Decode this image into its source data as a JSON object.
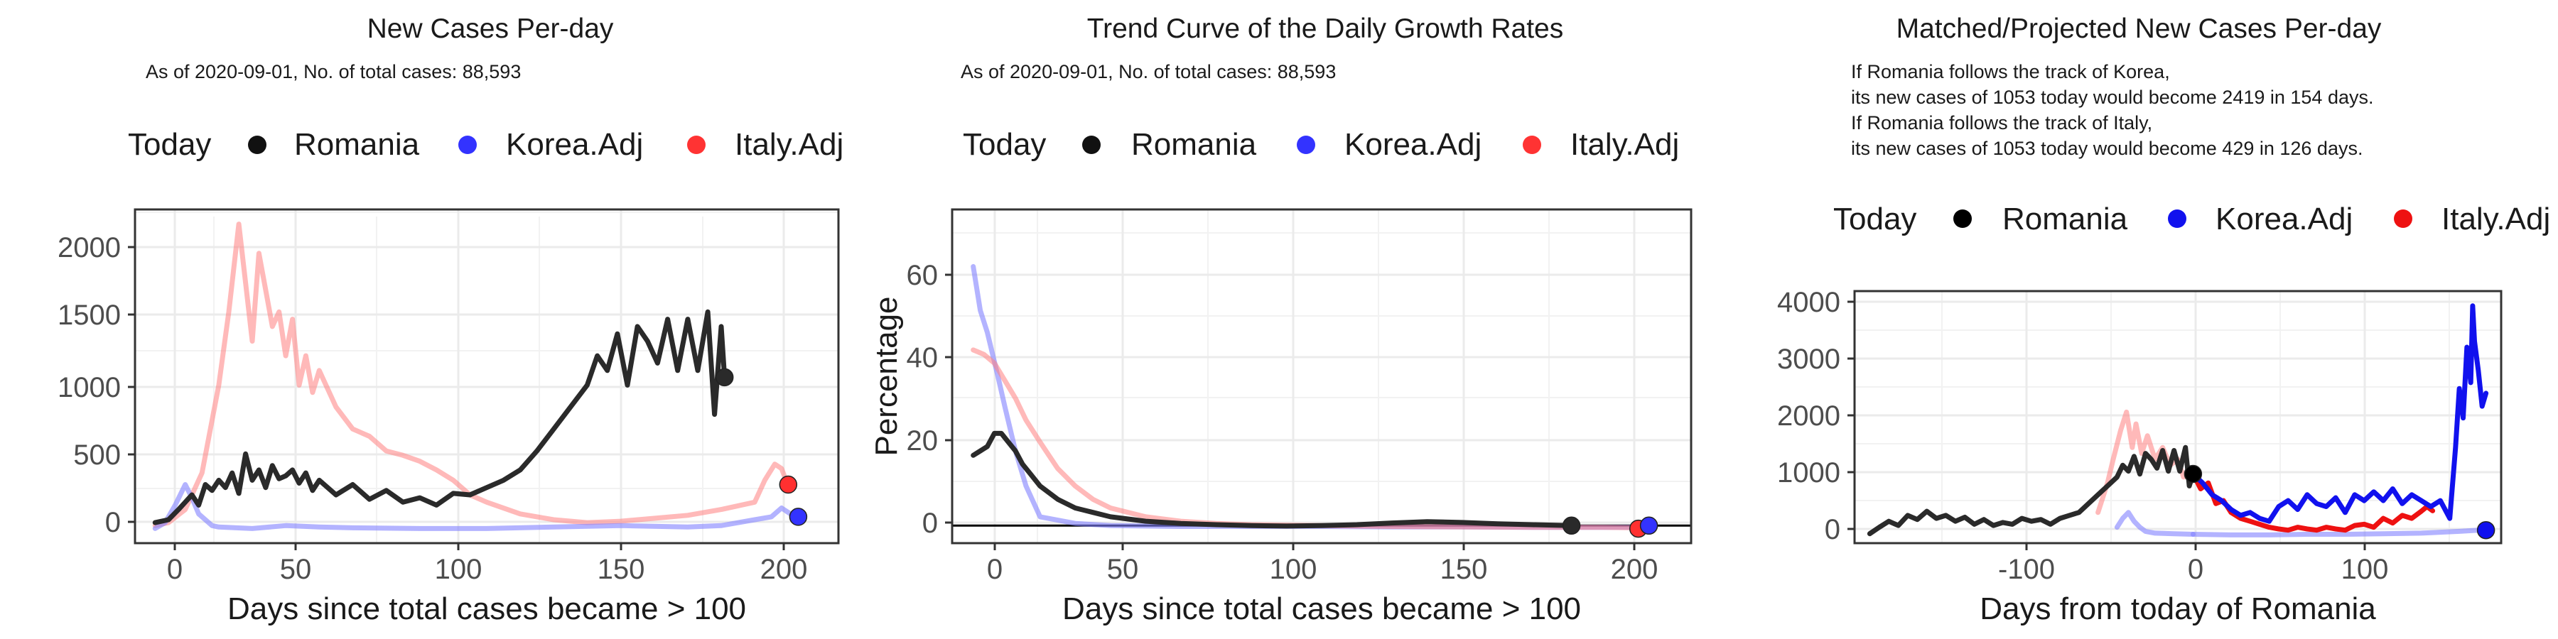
{
  "chart_data": [
    {
      "type": "line",
      "title": "New Cases Per-day",
      "subtitle": "As of 2020-09-01, No. of total cases: 88,593",
      "xlabel": "Days since total cases became > 100",
      "ylabel": "",
      "xlim": [
        -5,
        205
      ],
      "ylim": [
        -80,
        2200
      ],
      "xticks": [
        0,
        50,
        100,
        150,
        200
      ],
      "yticks": [
        0,
        500,
        1000,
        1500,
        2000
      ],
      "xtick_labels": [
        "0",
        "50",
        "100",
        "150",
        "200"
      ],
      "ytick_labels": [
        "0",
        "500",
        "1000",
        "1500",
        "2000"
      ],
      "legend": {
        "title": "Today",
        "entries": [
          "Romania",
          "Korea.Adj",
          "Italy.Adj"
        ]
      },
      "series": [
        {
          "name": "Italy.Adj",
          "color": "#ff8080",
          "opacity": 0.55,
          "x": [
            1,
            5,
            10,
            15,
            20,
            23,
            26,
            28,
            30,
            32,
            34,
            36,
            38,
            40,
            42,
            44,
            46,
            48,
            50,
            55,
            60,
            65,
            70,
            75,
            80,
            85,
            90,
            95,
            100,
            110,
            120,
            130,
            140,
            150,
            160,
            170,
            180,
            183,
            186,
            188,
            190
          ],
          "y": [
            40,
            60,
            150,
            400,
            1000,
            1500,
            2100,
            1700,
            1300,
            1900,
            1650,
            1400,
            1500,
            1200,
            1450,
            1000,
            1200,
            950,
            1100,
            850,
            700,
            650,
            550,
            520,
            480,
            420,
            350,
            250,
            200,
            120,
            80,
            60,
            70,
            90,
            110,
            150,
            200,
            350,
            460,
            430,
            310
          ]
        },
        {
          "name": "Korea.Adj",
          "color": "#8080ff",
          "opacity": 0.6,
          "x": [
            1,
            4,
            7,
            10,
            12,
            14,
            16,
            18,
            20,
            30,
            40,
            50,
            60,
            80,
            100,
            120,
            140,
            160,
            170,
            180,
            185,
            188,
            190,
            192
          ],
          "y": [
            20,
            60,
            180,
            320,
            230,
            120,
            80,
            40,
            30,
            20,
            40,
            30,
            25,
            20,
            20,
            30,
            40,
            30,
            40,
            80,
            100,
            160,
            130,
            100
          ]
        },
        {
          "name": "Romania",
          "color": "#2a2a2a",
          "opacity": 1,
          "x": [
            1,
            5,
            8,
            10,
            12,
            14,
            16,
            18,
            20,
            22,
            24,
            26,
            28,
            30,
            32,
            34,
            36,
            38,
            40,
            42,
            44,
            46,
            48,
            50,
            55,
            60,
            65,
            70,
            75,
            80,
            85,
            90,
            95,
            100,
            105,
            110,
            115,
            120,
            125,
            130,
            133,
            136,
            139,
            142,
            145,
            148,
            151,
            154,
            157,
            160,
            163,
            166,
            168,
            170,
            171
          ],
          "y": [
            60,
            80,
            150,
            200,
            250,
            180,
            320,
            280,
            350,
            300,
            400,
            260,
            530,
            350,
            420,
            300,
            450,
            360,
            380,
            420,
            330,
            400,
            280,
            350,
            250,
            320,
            220,
            280,
            200,
            230,
            180,
            260,
            250,
            300,
            350,
            420,
            550,
            700,
            850,
            1000,
            1200,
            1100,
            1350,
            1000,
            1400,
            1300,
            1150,
            1450,
            1100,
            1450,
            1100,
            1500,
            800,
            1400,
            1053
          ]
        }
      ],
      "points": [
        {
          "name": "Romania",
          "x": 171,
          "y": 1053,
          "color": "#2a2a2a"
        },
        {
          "name": "Italy.Adj",
          "x": 190,
          "y": 320,
          "color": "#ff3030"
        },
        {
          "name": "Korea.Adj",
          "x": 193,
          "y": 100,
          "color": "#3333ff"
        }
      ]
    },
    {
      "type": "line",
      "title": "Trend Curve of the Daily Growth Rates",
      "subtitle": "As of 2020-09-01, No. of total cases: 88,593",
      "xlabel": "Days since total cases became > 100",
      "ylabel": "Percentage",
      "xlim": [
        -5,
        205
      ],
      "ylim": [
        -3,
        73
      ],
      "xticks": [
        0,
        50,
        100,
        150,
        200
      ],
      "yticks": [
        0,
        20,
        40,
        60
      ],
      "xtick_labels": [
        "0",
        "50",
        "100",
        "150",
        "200"
      ],
      "ytick_labels": [
        "0",
        "20",
        "40",
        "60"
      ],
      "hline": 1,
      "legend": {
        "title": "Today",
        "entries": [
          "Romania",
          "Korea.Adj",
          "Italy.Adj"
        ]
      },
      "series": [
        {
          "name": "Korea.Adj",
          "color": "#8080ff",
          "opacity": 0.6,
          "x": [
            1,
            3,
            5,
            8,
            10,
            13,
            16,
            20,
            30,
            40,
            60,
            80,
            100,
            120,
            140,
            160,
            180,
            190,
            193
          ],
          "y": [
            60,
            50,
            45,
            35,
            28,
            18,
            10,
            3,
            1.5,
            1,
            0.8,
            0.8,
            0.8,
            0.7,
            0.7,
            0.6,
            0.6,
            0.6,
            0.5
          ]
        },
        {
          "name": "Italy.Adj",
          "color": "#ff8080",
          "opacity": 0.55,
          "x": [
            1,
            4,
            7,
            10,
            13,
            16,
            20,
            25,
            30,
            35,
            40,
            50,
            60,
            70,
            80,
            100,
            120,
            140,
            160,
            180,
            190
          ],
          "y": [
            41,
            40,
            38,
            34,
            30,
            25,
            20,
            14,
            10,
            7,
            5,
            3,
            2,
            1.5,
            1.2,
            1,
            0.8,
            0.7,
            0.6,
            0.6,
            0.5
          ]
        },
        {
          "name": "Romania",
          "color": "#2a2a2a",
          "opacity": 1,
          "x": [
            1,
            3,
            5,
            7,
            9,
            11,
            13,
            15,
            17,
            20,
            25,
            30,
            35,
            40,
            50,
            60,
            70,
            80,
            90,
            100,
            110,
            120,
            130,
            140,
            150,
            160,
            171
          ],
          "y": [
            17,
            18,
            19,
            22,
            22,
            20,
            18,
            15,
            13,
            10,
            7,
            5,
            4,
            3,
            2,
            1.5,
            1.2,
            1,
            0.9,
            1,
            1.2,
            1.6,
            1.9,
            1.7,
            1.4,
            1.2,
            1
          ]
        }
      ],
      "points": [
        {
          "name": "Romania",
          "x": 171,
          "y": 1,
          "color": "#2a2a2a"
        },
        {
          "name": "Italy.Adj",
          "x": 190,
          "y": 0.3,
          "color": "#ff3030"
        },
        {
          "name": "Korea.Adj",
          "x": 193,
          "y": 1,
          "color": "#3333ff"
        }
      ]
    },
    {
      "type": "line",
      "title": "Matched/Projected New Cases Per-day",
      "annotation": [
        "If Romania follows the track of Korea,",
        "its new cases of 1053 today would become 2419 in 154 days.",
        "If Romania follows the track of Italy,",
        "its new cases of 1053 today would become 429 in 126 days."
      ],
      "xlabel": "Days from today of Romania",
      "ylabel": "",
      "xlim": [
        -178,
        162
      ],
      "ylim": [
        -120,
        4150
      ],
      "xticks": [
        -100,
        0,
        100
      ],
      "yticks": [
        0,
        1000,
        2000,
        3000,
        4000
      ],
      "xtick_labels": [
        "-100",
        "0",
        "100"
      ],
      "ytick_labels": [
        "0",
        "1000",
        "2000",
        "3000",
        "4000"
      ],
      "legend": {
        "title": "Today",
        "entries": [
          "Romania",
          "Korea.Adj",
          "Italy.Adj"
        ]
      },
      "series": [
        {
          "name": "Italy.Adj (matched)",
          "color": "#ff8080",
          "opacity": 0.55,
          "x": [
            -50,
            -45,
            -42,
            -38,
            -35,
            -32,
            -30,
            -27,
            -24,
            -20,
            -16,
            -12,
            -8,
            -5,
            -2,
            0
          ],
          "y": [
            400,
            900,
            1300,
            1800,
            2100,
            1500,
            1900,
            1400,
            1700,
            1300,
            1500,
            1200,
            1300,
            1000,
            1100,
            1000
          ]
        },
        {
          "name": "Korea.Adj (matched)",
          "color": "#8080ff",
          "opacity": 0.6,
          "x": [
            -40,
            -37,
            -34,
            -31,
            -28,
            -25,
            -20,
            -10,
            0
          ],
          "y": [
            150,
            300,
            400,
            250,
            150,
            80,
            50,
            40,
            30
          ]
        },
        {
          "name": "Korea.Adj (past)",
          "color": "#8080ff",
          "opacity": 0.6,
          "x": [
            0,
            20,
            40,
            60,
            80,
            100,
            120,
            140,
            150,
            154
          ],
          "y": [
            30,
            20,
            20,
            30,
            30,
            40,
            50,
            80,
            100,
            110
          ]
        },
        {
          "name": "Romania",
          "color": "#2a2a2a",
          "opacity": 1,
          "x": [
            -170,
            -165,
            -160,
            -155,
            -150,
            -145,
            -140,
            -135,
            -130,
            -125,
            -120,
            -115,
            -110,
            -105,
            -100,
            -95,
            -90,
            -85,
            -80,
            -75,
            -70,
            -65,
            -60,
            -55,
            -50,
            -45,
            -40,
            -37,
            -34,
            -31,
            -28,
            -25,
            -22,
            -19,
            -16,
            -13,
            -10,
            -7,
            -4,
            -2,
            0
          ],
          "y": [
            40,
            150,
            250,
            180,
            350,
            280,
            420,
            300,
            350,
            250,
            320,
            200,
            280,
            180,
            230,
            200,
            300,
            250,
            280,
            200,
            300,
            350,
            400,
            550,
            700,
            850,
            1000,
            1200,
            1100,
            1350,
            1050,
            1400,
            1300,
            1150,
            1450,
            1100,
            1450,
            1100,
            1500,
            850,
            1053
          ]
        },
        {
          "name": "Italy.Adj (projected)",
          "color": "#ee1111",
          "opacity": 1,
          "x": [
            0,
            4,
            8,
            12,
            16,
            20,
            25,
            30,
            35,
            40,
            45,
            50,
            55,
            60,
            65,
            70,
            75,
            80,
            85,
            90,
            95,
            100,
            105,
            110,
            115,
            120,
            123,
            126
          ],
          "y": [
            1053,
            800,
            900,
            550,
            600,
            400,
            300,
            250,
            200,
            150,
            120,
            100,
            150,
            120,
            100,
            150,
            120,
            100,
            180,
            200,
            150,
            300,
            220,
            350,
            300,
            420,
            500,
            429
          ]
        },
        {
          "name": "Korea.Adj (projected)",
          "color": "#1111ee",
          "opacity": 1,
          "x": [
            0,
            5,
            10,
            15,
            20,
            25,
            30,
            35,
            40,
            45,
            50,
            55,
            60,
            65,
            70,
            75,
            80,
            85,
            90,
            95,
            100,
            105,
            110,
            115,
            120,
            125,
            130,
            135,
            138,
            140,
            142,
            144,
            146,
            147,
            148,
            150,
            152,
            154
          ],
          "y": [
            1053,
            900,
            700,
            600,
            450,
            350,
            400,
            300,
            250,
            500,
            600,
            450,
            700,
            550,
            500,
            650,
            400,
            700,
            600,
            750,
            600,
            800,
            550,
            700,
            600,
            500,
            600,
            300,
            1500,
            2500,
            2000,
            3200,
            2600,
            3900,
            3300,
            2800,
            2200,
            2419
          ]
        }
      ],
      "points": [
        {
          "name": "Romania",
          "x": 0,
          "y": 1053,
          "color": "#000000"
        },
        {
          "name": "Korea.Adj",
          "x": 154,
          "y": 100,
          "color": "#1111ee"
        }
      ]
    }
  ],
  "legend_colors": {
    "Romania": "#111111",
    "Korea.Adj": "#2222ff",
    "Italy.Adj": "#ff2222"
  }
}
